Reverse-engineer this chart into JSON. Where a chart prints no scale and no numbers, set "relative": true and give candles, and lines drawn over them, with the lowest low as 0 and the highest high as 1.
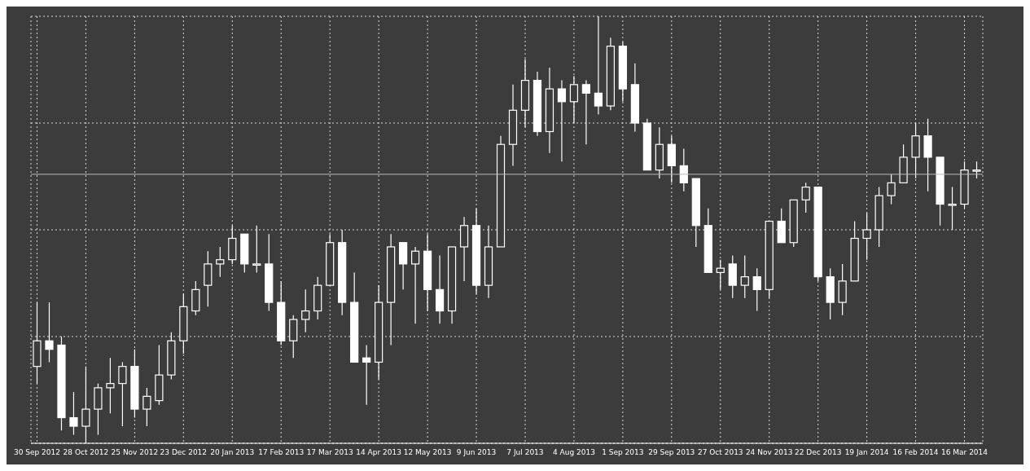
{
  "chart_data": {
    "type": "candlestick",
    "relative": true,
    "grid": true,
    "categories": [
      "30 Sep 2012",
      null,
      null,
      null,
      "28 Oct 2012",
      null,
      null,
      null,
      "25 Nov 2012",
      null,
      null,
      null,
      "23 Dec 2012",
      null,
      null,
      null,
      "20 Jan 2013",
      null,
      null,
      null,
      "17 Feb 2013",
      null,
      null,
      null,
      "17 Mar 2013",
      null,
      null,
      null,
      "14 Apr 2013",
      null,
      null,
      null,
      "12 May 2013",
      null,
      null,
      null,
      "9 Jun 2013",
      null,
      null,
      null,
      "7 Jul 2013",
      null,
      null,
      null,
      "4 Aug 2013",
      null,
      null,
      null,
      "1 Sep 2013",
      null,
      null,
      null,
      "29 Sep 2013",
      null,
      null,
      null,
      "27 Oct 2013",
      null,
      null,
      null,
      "24 Nov 2013",
      null,
      null,
      null,
      "22 Dec 2013",
      null,
      null,
      null,
      "19 Jan 2014",
      null,
      null,
      null,
      "16 Feb 2014",
      null,
      null,
      null,
      "16 Mar 2014",
      null
    ],
    "ohlc": [
      [
        0.18,
        0.33,
        0.14,
        0.24
      ],
      [
        0.24,
        0.33,
        0.19,
        0.22
      ],
      [
        0.23,
        0.25,
        0.03,
        0.06
      ],
      [
        0.06,
        0.12,
        0.02,
        0.04
      ],
      [
        0.04,
        0.18,
        0,
        0.08
      ],
      [
        0.08,
        0.14,
        0.02,
        0.13
      ],
      [
        0.13,
        0.2,
        0.07,
        0.14
      ],
      [
        0.14,
        0.19,
        0.04,
        0.18
      ],
      [
        0.18,
        0.22,
        0.06,
        0.08
      ],
      [
        0.08,
        0.13,
        0.04,
        0.11
      ],
      [
        0.1,
        0.23,
        0.09,
        0.16
      ],
      [
        0.16,
        0.26,
        0.15,
        0.24
      ],
      [
        0.24,
        0.35,
        0.21,
        0.32
      ],
      [
        0.31,
        0.38,
        0.3,
        0.36
      ],
      [
        0.37,
        0.45,
        0.32,
        0.42
      ],
      [
        0.42,
        0.46,
        0.39,
        0.43
      ],
      [
        0.43,
        0.51,
        0.42,
        0.48
      ],
      [
        0.49,
        0.49,
        0.4,
        0.42
      ],
      [
        0.42,
        0.51,
        0.4,
        0.42
      ],
      [
        0.42,
        0.49,
        0.31,
        0.33
      ],
      [
        0.33,
        0.38,
        0.23,
        0.24
      ],
      [
        0.24,
        0.3,
        0.2,
        0.29
      ],
      [
        0.29,
        0.36,
        0.26,
        0.31
      ],
      [
        0.31,
        0.39,
        0.29,
        0.37
      ],
      [
        0.37,
        0.49,
        0.37,
        0.47
      ],
      [
        0.47,
        0.5,
        0.3,
        0.33
      ],
      [
        0.33,
        0.4,
        0.19,
        0.19
      ],
      [
        0.2,
        0.23,
        0.09,
        0.19
      ],
      [
        0.19,
        0.37,
        0.15,
        0.33
      ],
      [
        0.33,
        0.49,
        0.23,
        0.46
      ],
      [
        0.47,
        0.47,
        0.36,
        0.42
      ],
      [
        0.42,
        0.46,
        0.28,
        0.45
      ],
      [
        0.45,
        0.49,
        0.31,
        0.36
      ],
      [
        0.36,
        0.44,
        0.28,
        0.31
      ],
      [
        0.31,
        0.46,
        0.28,
        0.46
      ],
      [
        0.46,
        0.53,
        0.38,
        0.51
      ],
      [
        0.51,
        0.55,
        0.35,
        0.37
      ],
      [
        0.37,
        0.51,
        0.34,
        0.46
      ],
      [
        0.46,
        0.72,
        0.46,
        0.7
      ],
      [
        0.7,
        0.84,
        0.65,
        0.78
      ],
      [
        0.78,
        0.9,
        0.74,
        0.85
      ],
      [
        0.85,
        0.87,
        0.72,
        0.73
      ],
      [
        0.73,
        0.88,
        0.68,
        0.83
      ],
      [
        0.83,
        0.85,
        0.66,
        0.8
      ],
      [
        0.8,
        0.86,
        0.75,
        0.84
      ],
      [
        0.84,
        0.85,
        0.7,
        0.82
      ],
      [
        0.82,
        1,
        0.77,
        0.79
      ],
      [
        0.79,
        0.95,
        0.78,
        0.93
      ],
      [
        0.93,
        0.94,
        0.8,
        0.83
      ],
      [
        0.84,
        0.89,
        0.73,
        0.75
      ],
      [
        0.75,
        0.76,
        0.64,
        0.64
      ],
      [
        0.64,
        0.74,
        0.62,
        0.7
      ],
      [
        0.7,
        0.72,
        0.61,
        0.65
      ],
      [
        0.65,
        0.69,
        0.59,
        0.61
      ],
      [
        0.62,
        0.62,
        0.46,
        0.51
      ],
      [
        0.51,
        0.55,
        0.4,
        0.4
      ],
      [
        0.4,
        0.43,
        0.36,
        0.41
      ],
      [
        0.42,
        0.44,
        0.34,
        0.37
      ],
      [
        0.37,
        0.44,
        0.34,
        0.39
      ],
      [
        0.39,
        0.41,
        0.31,
        0.36
      ],
      [
        0.36,
        0.52,
        0.34,
        0.52
      ],
      [
        0.52,
        0.55,
        0.47,
        0.47
      ],
      [
        0.47,
        0.57,
        0.46,
        0.57
      ],
      [
        0.57,
        0.61,
        0.54,
        0.6
      ],
      [
        0.6,
        0.6,
        0.38,
        0.39
      ],
      [
        0.39,
        0.41,
        0.29,
        0.33
      ],
      [
        0.33,
        0.42,
        0.3,
        0.38
      ],
      [
        0.38,
        0.52,
        0.38,
        0.48
      ],
      [
        0.48,
        0.54,
        0.43,
        0.5
      ],
      [
        0.5,
        0.6,
        0.46,
        0.58
      ],
      [
        0.58,
        0.63,
        0.56,
        0.61
      ],
      [
        0.61,
        0.7,
        0.61,
        0.67
      ],
      [
        0.67,
        0.75,
        0.62,
        0.72
      ],
      [
        0.72,
        0.76,
        0.59,
        0.67
      ],
      [
        0.67,
        0.67,
        0.51,
        0.56
      ],
      [
        0.56,
        0.6,
        0.5,
        0.56
      ],
      [
        0.56,
        0.66,
        0.55,
        0.64
      ],
      [
        0.64,
        0.66,
        0.62,
        0.64
      ]
    ],
    "ref_lines": [
      {
        "axis": "y",
        "value": 0.63,
        "color": "#bbbbbb"
      }
    ]
  }
}
